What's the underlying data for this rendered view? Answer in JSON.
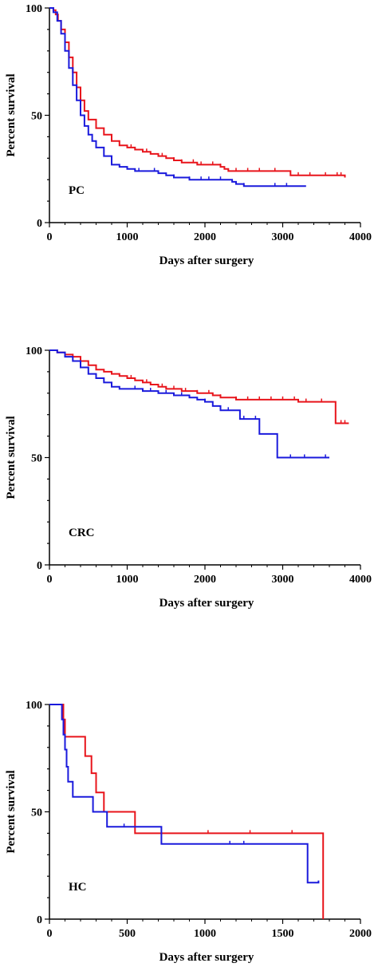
{
  "chart_data": [
    {
      "type": "line",
      "panel_label": "PC",
      "xlabel": "Days after surgery",
      "ylabel": "Percent survival",
      "xlim": [
        0,
        4000
      ],
      "ylim": [
        0,
        100
      ],
      "xticks": [
        0,
        1000,
        2000,
        3000,
        4000
      ],
      "yticks": [
        0,
        50,
        100
      ],
      "xtick_labels": [
        "0",
        "1000",
        "2000",
        "3000",
        "4000"
      ],
      "ytick_labels": [
        "0",
        "50",
        "100"
      ],
      "grid": false,
      "series": [
        {
          "color": "#e8141b",
          "points": [
            [
              0,
              100
            ],
            [
              50,
              99
            ],
            [
              80,
              97
            ],
            [
              110,
              94
            ],
            [
              150,
              90
            ],
            [
              200,
              84
            ],
            [
              250,
              77
            ],
            [
              300,
              70
            ],
            [
              350,
              63
            ],
            [
              400,
              57
            ],
            [
              450,
              52
            ],
            [
              500,
              48
            ],
            [
              600,
              44
            ],
            [
              700,
              41
            ],
            [
              800,
              38
            ],
            [
              900,
              36
            ],
            [
              1000,
              35
            ],
            [
              1100,
              34
            ],
            [
              1200,
              33
            ],
            [
              1300,
              32
            ],
            [
              1400,
              31
            ],
            [
              1500,
              30
            ],
            [
              1600,
              29
            ],
            [
              1700,
              28
            ],
            [
              1800,
              28
            ],
            [
              1900,
              27
            ],
            [
              2000,
              27
            ],
            [
              2100,
              27
            ],
            [
              2200,
              26
            ],
            [
              2250,
              25
            ],
            [
              2300,
              24
            ],
            [
              2350,
              24
            ],
            [
              2400,
              24
            ],
            [
              2700,
              24
            ],
            [
              3100,
              24
            ],
            [
              3100,
              22
            ],
            [
              3300,
              22
            ],
            [
              3500,
              22
            ],
            [
              3800,
              21
            ]
          ],
          "censor_x": [
            1050,
            1250,
            1450,
            1600,
            1700,
            1850,
            1950,
            2100,
            2200,
            2400,
            2550,
            2700,
            2900,
            3200,
            3350,
            3550,
            3700,
            3750
          ]
        },
        {
          "color": "#1a1adc",
          "points": [
            [
              0,
              100
            ],
            [
              50,
              98
            ],
            [
              100,
              94
            ],
            [
              150,
              88
            ],
            [
              200,
              80
            ],
            [
              250,
              72
            ],
            [
              300,
              64
            ],
            [
              350,
              57
            ],
            [
              400,
              50
            ],
            [
              450,
              45
            ],
            [
              500,
              41
            ],
            [
              550,
              38
            ],
            [
              600,
              35
            ],
            [
              700,
              31
            ],
            [
              800,
              27
            ],
            [
              900,
              26
            ],
            [
              1000,
              25
            ],
            [
              1100,
              24
            ],
            [
              1200,
              24
            ],
            [
              1300,
              24
            ],
            [
              1400,
              23
            ],
            [
              1500,
              22
            ],
            [
              1600,
              21
            ],
            [
              1700,
              21
            ],
            [
              1800,
              20
            ],
            [
              2000,
              20
            ],
            [
              2200,
              20
            ],
            [
              2350,
              19
            ],
            [
              2400,
              18
            ],
            [
              2500,
              17
            ],
            [
              2700,
              17
            ],
            [
              3000,
              17
            ],
            [
              3300,
              17
            ]
          ],
          "censor_x": [
            1150,
            1350,
            1600,
            1800,
            1950,
            2050,
            2200,
            2500,
            2900,
            3050
          ]
        }
      ]
    },
    {
      "type": "line",
      "panel_label": "CRC",
      "xlabel": "Days after surgery",
      "ylabel": "Percent survival",
      "xlim": [
        0,
        4000
      ],
      "ylim": [
        0,
        100
      ],
      "xticks": [
        0,
        1000,
        2000,
        3000,
        4000
      ],
      "yticks": [
        0,
        50,
        100
      ],
      "xtick_labels": [
        "0",
        "1000",
        "2000",
        "3000",
        "4000"
      ],
      "ytick_labels": [
        "0",
        "50",
        "100"
      ],
      "grid": false,
      "series": [
        {
          "color": "#e8141b",
          "points": [
            [
              0,
              100
            ],
            [
              100,
              99
            ],
            [
              200,
              98
            ],
            [
              300,
              97
            ],
            [
              400,
              95
            ],
            [
              500,
              93
            ],
            [
              600,
              91
            ],
            [
              700,
              90
            ],
            [
              800,
              89
            ],
            [
              900,
              88
            ],
            [
              1000,
              87
            ],
            [
              1100,
              86
            ],
            [
              1200,
              85
            ],
            [
              1300,
              84
            ],
            [
              1400,
              83
            ],
            [
              1500,
              82
            ],
            [
              1600,
              82
            ],
            [
              1700,
              81
            ],
            [
              1800,
              81
            ],
            [
              1900,
              80
            ],
            [
              2000,
              80
            ],
            [
              2100,
              79
            ],
            [
              2200,
              78
            ],
            [
              2300,
              78
            ],
            [
              2400,
              77
            ],
            [
              2500,
              77
            ],
            [
              2800,
              77
            ],
            [
              3200,
              76
            ],
            [
              3500,
              76
            ],
            [
              3680,
              76
            ],
            [
              3680,
              66
            ],
            [
              3850,
              66
            ]
          ],
          "censor_x": [
            1050,
            1250,
            1450,
            1600,
            1750,
            1900,
            2050,
            2200,
            2400,
            2550,
            2700,
            2850,
            3000,
            3150,
            3300,
            3500,
            3750,
            3800
          ]
        },
        {
          "color": "#1a1adc",
          "points": [
            [
              0,
              100
            ],
            [
              100,
              99
            ],
            [
              200,
              97
            ],
            [
              300,
              95
            ],
            [
              400,
              92
            ],
            [
              500,
              89
            ],
            [
              600,
              87
            ],
            [
              700,
              85
            ],
            [
              800,
              83
            ],
            [
              900,
              82
            ],
            [
              1000,
              82
            ],
            [
              1200,
              81
            ],
            [
              1400,
              80
            ],
            [
              1600,
              79
            ],
            [
              1800,
              78
            ],
            [
              1900,
              77
            ],
            [
              2000,
              76
            ],
            [
              2100,
              74
            ],
            [
              2200,
              72
            ],
            [
              2400,
              72
            ],
            [
              2450,
              68
            ],
            [
              2700,
              68
            ],
            [
              2700,
              61
            ],
            [
              2930,
              61
            ],
            [
              2930,
              50
            ],
            [
              3100,
              50
            ],
            [
              3600,
              50
            ]
          ],
          "censor_x": [
            1100,
            1300,
            1500,
            1700,
            2000,
            2300,
            2500,
            2650,
            3100,
            3280,
            3550
          ]
        }
      ]
    },
    {
      "type": "line",
      "panel_label": "HC",
      "xlabel": "Days after surgery",
      "ylabel": "Percent survival",
      "xlim": [
        0,
        2000
      ],
      "ylim": [
        0,
        100
      ],
      "xticks": [
        0,
        500,
        1000,
        1500,
        2000
      ],
      "yticks": [
        0,
        50,
        100
      ],
      "xtick_labels": [
        "0",
        "500",
        "1000",
        "1500",
        "2000"
      ],
      "ytick_labels": [
        "0",
        "50",
        "100"
      ],
      "grid": false,
      "series": [
        {
          "color": "#e8141b",
          "points": [
            [
              0,
              100
            ],
            [
              90,
              100
            ],
            [
              90,
              93
            ],
            [
              100,
              93
            ],
            [
              100,
              85
            ],
            [
              230,
              85
            ],
            [
              230,
              76
            ],
            [
              270,
              76
            ],
            [
              270,
              68
            ],
            [
              300,
              68
            ],
            [
              300,
              59
            ],
            [
              350,
              59
            ],
            [
              350,
              50
            ],
            [
              550,
              50
            ],
            [
              550,
              40
            ],
            [
              1760,
              40
            ],
            [
              1760,
              0
            ]
          ],
          "censor_x": [
            1020,
            1290,
            1560
          ]
        },
        {
          "color": "#1a1adc",
          "points": [
            [
              0,
              100
            ],
            [
              80,
              100
            ],
            [
              80,
              93
            ],
            [
              90,
              93
            ],
            [
              90,
              86
            ],
            [
              100,
              86
            ],
            [
              100,
              79
            ],
            [
              110,
              79
            ],
            [
              110,
              71
            ],
            [
              120,
              71
            ],
            [
              120,
              64
            ],
            [
              150,
              64
            ],
            [
              150,
              57
            ],
            [
              280,
              57
            ],
            [
              280,
              50
            ],
            [
              370,
              50
            ],
            [
              370,
              43
            ],
            [
              720,
              43
            ],
            [
              720,
              35
            ],
            [
              1660,
              35
            ],
            [
              1660,
              17
            ],
            [
              1730,
              17
            ],
            [
              1730,
              18
            ]
          ],
          "censor_x": [
            480,
            1160,
            1250
          ]
        }
      ]
    }
  ]
}
